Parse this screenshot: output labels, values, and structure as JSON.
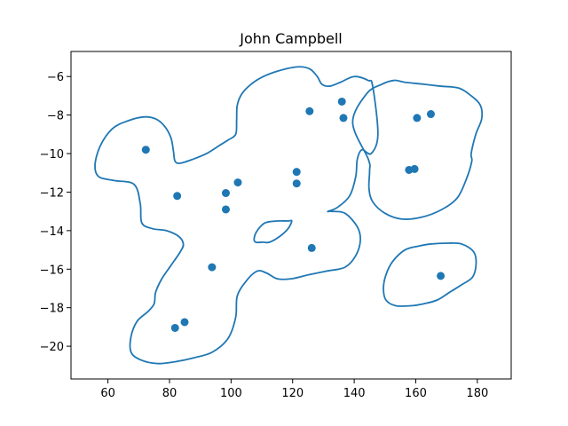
{
  "chart_data": {
    "type": "scatter",
    "title": "John Campbell",
    "xlabel": "",
    "ylabel": "",
    "xlim": [
      48,
      191
    ],
    "ylim": [
      -21.7,
      -4.7
    ],
    "xticks": [
      60,
      80,
      100,
      120,
      140,
      160,
      180
    ],
    "yticks": [
      -6,
      -8,
      -10,
      -12,
      -14,
      -16,
      -18,
      -20
    ],
    "grid": false,
    "color": "#1f77b4",
    "points": [
      {
        "x": 72.3,
        "y": -9.8
      },
      {
        "x": 82.5,
        "y": -12.2
      },
      {
        "x": 98.3,
        "y": -12.05
      },
      {
        "x": 102.2,
        "y": -11.5
      },
      {
        "x": 98.3,
        "y": -12.9
      },
      {
        "x": 93.8,
        "y": -15.9
      },
      {
        "x": 81.8,
        "y": -19.05
      },
      {
        "x": 84.9,
        "y": -18.75
      },
      {
        "x": 125.5,
        "y": -7.8
      },
      {
        "x": 136.0,
        "y": -7.3
      },
      {
        "x": 136.5,
        "y": -8.15
      },
      {
        "x": 121.3,
        "y": -10.95
      },
      {
        "x": 121.3,
        "y": -11.55
      },
      {
        "x": 126.2,
        "y": -14.9
      },
      {
        "x": 160.4,
        "y": -8.15
      },
      {
        "x": 164.9,
        "y": -7.95
      },
      {
        "x": 157.8,
        "y": -10.85
      },
      {
        "x": 159.6,
        "y": -10.8
      },
      {
        "x": 168.1,
        "y": -16.35
      }
    ],
    "contours": [
      [
        [
          55.8,
          -10.6
        ],
        [
          57.5,
          -9.6
        ],
        [
          61.5,
          -8.7
        ],
        [
          66.5,
          -8.3
        ],
        [
          71.5,
          -8.1
        ],
        [
          75.5,
          -8.2
        ],
        [
          78.5,
          -8.6
        ],
        [
          80.5,
          -9.2
        ],
        [
          81.3,
          -9.9
        ],
        [
          81.8,
          -10.4
        ],
        [
          83.5,
          -10.5
        ],
        [
          87.5,
          -10.3
        ],
        [
          92.0,
          -10.0
        ],
        [
          96.0,
          -9.6
        ],
        [
          99.0,
          -9.3
        ],
        [
          101.5,
          -9.0
        ],
        [
          101.8,
          -8.3
        ],
        [
          102.0,
          -7.5
        ],
        [
          103.5,
          -6.9
        ],
        [
          106.5,
          -6.4
        ],
        [
          110.5,
          -6.0
        ],
        [
          115.5,
          -5.7
        ],
        [
          121.5,
          -5.5
        ],
        [
          125.5,
          -5.6
        ],
        [
          128.0,
          -6.0
        ],
        [
          129.5,
          -6.4
        ],
        [
          132.0,
          -6.5
        ],
        [
          135.5,
          -6.3
        ],
        [
          140.0,
          -6.0
        ],
        [
          144.5,
          -6.2
        ],
        [
          146.0,
          -6.5
        ],
        [
          147.7,
          -9.0
        ],
        [
          145.5,
          -10.0
        ],
        [
          142.5,
          -9.8
        ],
        [
          141.0,
          -10.3
        ],
        [
          140.5,
          -11.2
        ],
        [
          138.5,
          -12.2
        ],
        [
          134.5,
          -12.8
        ],
        [
          131.5,
          -13.0
        ],
        [
          132.5,
          -13.0
        ],
        [
          137.0,
          -13.1
        ],
        [
          141.0,
          -13.8
        ],
        [
          142.0,
          -14.5
        ],
        [
          140.5,
          -15.3
        ],
        [
          137.0,
          -15.9
        ],
        [
          131.0,
          -16.1
        ],
        [
          125.0,
          -16.3
        ],
        [
          119.5,
          -16.5
        ],
        [
          115.0,
          -16.5
        ],
        [
          111.5,
          -16.2
        ],
        [
          108.5,
          -16.1
        ],
        [
          105.0,
          -16.6
        ],
        [
          102.0,
          -17.4
        ],
        [
          101.5,
          -18.5
        ],
        [
          99.0,
          -19.6
        ],
        [
          94.0,
          -20.3
        ],
        [
          88.0,
          -20.6
        ],
        [
          82.0,
          -20.8
        ],
        [
          76.0,
          -20.9
        ],
        [
          70.5,
          -20.7
        ],
        [
          67.5,
          -20.3
        ],
        [
          67.5,
          -19.5
        ],
        [
          69.5,
          -18.7
        ],
        [
          73.0,
          -18.2
        ],
        [
          75.0,
          -17.8
        ],
        [
          75.5,
          -17.2
        ],
        [
          77.5,
          -16.5
        ],
        [
          80.5,
          -15.8
        ],
        [
          83.5,
          -15.1
        ],
        [
          84.5,
          -14.7
        ],
        [
          83.0,
          -14.3
        ],
        [
          79.0,
          -14.0
        ],
        [
          74.5,
          -13.9
        ],
        [
          71.0,
          -13.6
        ],
        [
          70.5,
          -12.6
        ],
        [
          68.5,
          -11.6
        ],
        [
          62.0,
          -11.4
        ],
        [
          57.0,
          -11.2
        ]
      ],
      [
        [
          139.5,
          -8.4
        ],
        [
          144.0,
          -6.9
        ],
        [
          149.0,
          -6.4
        ],
        [
          153.0,
          -6.2
        ],
        [
          156.5,
          -6.3
        ],
        [
          162.5,
          -6.4
        ],
        [
          168.0,
          -6.5
        ],
        [
          174.0,
          -6.6
        ],
        [
          178.0,
          -7.0
        ],
        [
          181.0,
          -7.5
        ],
        [
          181.4,
          -8.2
        ],
        [
          179.5,
          -9.0
        ],
        [
          178.0,
          -10.0
        ],
        [
          178.2,
          -10.4
        ],
        [
          176.5,
          -11.3
        ],
        [
          173.5,
          -12.3
        ],
        [
          168.5,
          -12.9
        ],
        [
          162.0,
          -13.3
        ],
        [
          155.5,
          -13.4
        ],
        [
          150.0,
          -13.1
        ],
        [
          146.0,
          -12.5
        ],
        [
          144.8,
          -11.8
        ],
        [
          145.0,
          -10.9
        ],
        [
          144.6,
          -10.3
        ]
      ],
      [
        [
          107.5,
          -14.4
        ],
        [
          108.5,
          -14.0
        ],
        [
          111.0,
          -13.6
        ],
        [
          115.0,
          -13.5
        ],
        [
          118.5,
          -13.5
        ],
        [
          119.7,
          -13.5
        ],
        [
          118.5,
          -13.9
        ],
        [
          115.8,
          -14.3
        ],
        [
          112.5,
          -14.6
        ],
        [
          110.3,
          -14.6
        ],
        [
          108.0,
          -14.6
        ]
      ],
      [
        [
          149.5,
          -17.0
        ],
        [
          150.3,
          -16.3
        ],
        [
          152.5,
          -15.6
        ],
        [
          156.5,
          -15.0
        ],
        [
          161.0,
          -14.8
        ],
        [
          164.5,
          -14.7
        ],
        [
          170.5,
          -14.65
        ],
        [
          175.0,
          -14.7
        ],
        [
          178.8,
          -15.1
        ],
        [
          179.6,
          -15.7
        ],
        [
          178.5,
          -16.4
        ],
        [
          175.0,
          -16.8
        ],
        [
          171.0,
          -17.2
        ],
        [
          167.0,
          -17.6
        ],
        [
          162.5,
          -17.8
        ],
        [
          158.5,
          -17.9
        ],
        [
          153.5,
          -17.9
        ],
        [
          150.3,
          -17.6
        ]
      ]
    ]
  }
}
